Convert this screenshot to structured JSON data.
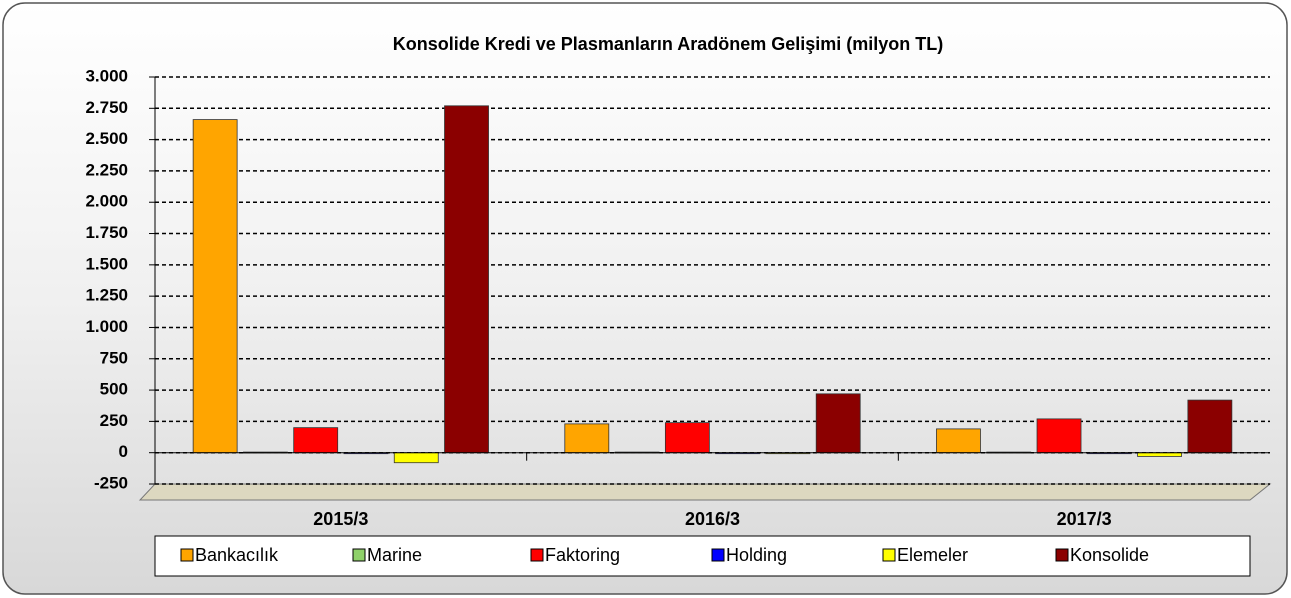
{
  "chart_data": {
    "type": "bar",
    "title": "Konsolide Kredi ve Plasmanların Aradönem Gelişimi (milyon TL)",
    "categories": [
      "2015/3",
      "2016/3",
      "2017/3"
    ],
    "series": [
      {
        "name": "Bankacılık",
        "color": "#ffa500",
        "values": [
          2660,
          230,
          190
        ]
      },
      {
        "name": "Marine",
        "color": "#8fd16a",
        "values": [
          5,
          5,
          5
        ]
      },
      {
        "name": "Faktoring",
        "color": "#ff0000",
        "values": [
          200,
          240,
          270
        ]
      },
      {
        "name": "Holding",
        "color": "#0000ff",
        "values": [
          -5,
          -5,
          -5
        ]
      },
      {
        "name": "Elemeler",
        "color": "#ffff00",
        "values": [
          -80,
          0,
          -30
        ]
      },
      {
        "name": "Konsolide",
        "color": "#8b0000",
        "values": [
          2770,
          470,
          420
        ]
      }
    ],
    "ylim": [
      -250,
      3000
    ],
    "yticks": [
      -250,
      0,
      250,
      500,
      750,
      {
        "value": 1000,
        "label": "1.000"
      },
      {
        "value": 1250,
        "label": "1.250"
      },
      {
        "value": 1500,
        "label": "1.500"
      },
      {
        "value": 1750,
        "label": "1.750"
      },
      {
        "value": 2000,
        "label": "2.000"
      },
      {
        "value": 2250,
        "label": "2.250"
      },
      {
        "value": 2500,
        "label": "2.500"
      },
      {
        "value": 2750,
        "label": "2.750"
      },
      {
        "value": 3000,
        "label": "3.000"
      }
    ],
    "grid": true,
    "legend": "bottom"
  }
}
